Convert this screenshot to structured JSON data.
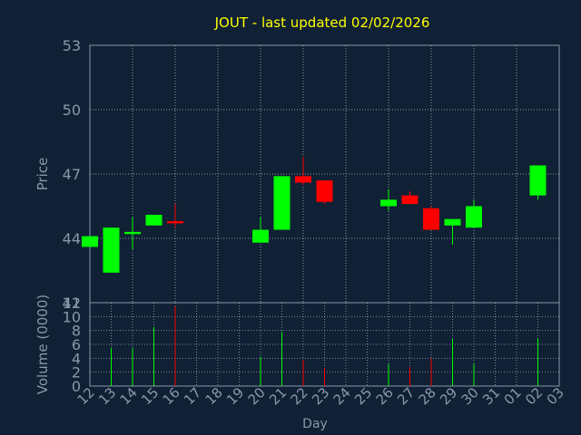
{
  "chart_data": [
    {
      "type": "candlestick",
      "title": "JOUT - last updated 02/02/2026",
      "ylabel": "Price",
      "ylim": [
        41,
        53
      ],
      "yticks": [
        41,
        44,
        47,
        50,
        53
      ],
      "grid": true,
      "colors": {
        "up": "#00ff00",
        "down": "#ff0000",
        "title": "#ffff00",
        "text": "#8899aa",
        "grid": "#ffffff",
        "background": "#102035"
      },
      "x": [
        "12",
        "13",
        "14",
        "15",
        "16",
        "17",
        "18",
        "19",
        "20",
        "21",
        "22",
        "23",
        "24",
        "25",
        "26",
        "27",
        "28",
        "29",
        "30",
        "31",
        "01",
        "02",
        "03"
      ],
      "candles": [
        {
          "day": "12",
          "open": 43.6,
          "close": 44.1,
          "high": 44.1,
          "low": 43.6
        },
        {
          "day": "13",
          "open": 42.4,
          "close": 44.5,
          "high": 44.5,
          "low": 42.4
        },
        {
          "day": "14",
          "open": 44.2,
          "close": 44.3,
          "high": 45.0,
          "low": 43.5
        },
        {
          "day": "15",
          "open": 44.6,
          "close": 45.1,
          "high": 45.1,
          "low": 44.6
        },
        {
          "day": "16",
          "open": 44.8,
          "close": 44.7,
          "high": 45.6,
          "low": 44.5
        },
        {
          "day": "20",
          "open": 43.8,
          "close": 44.4,
          "high": 45.0,
          "low": 43.8
        },
        {
          "day": "21",
          "open": 44.4,
          "close": 46.9,
          "high": 46.9,
          "low": 44.4
        },
        {
          "day": "22",
          "open": 46.9,
          "close": 46.6,
          "high": 47.8,
          "low": 46.5
        },
        {
          "day": "23",
          "open": 46.7,
          "close": 45.7,
          "high": 46.7,
          "low": 45.6
        },
        {
          "day": "26",
          "open": 45.5,
          "close": 45.8,
          "high": 46.3,
          "low": 45.3
        },
        {
          "day": "27",
          "open": 46.0,
          "close": 45.6,
          "high": 46.2,
          "low": 45.6
        },
        {
          "day": "28",
          "open": 45.4,
          "close": 44.4,
          "high": 45.5,
          "low": 44.4
        },
        {
          "day": "29",
          "open": 44.6,
          "close": 44.9,
          "high": 44.9,
          "low": 43.7
        },
        {
          "day": "30",
          "open": 44.5,
          "close": 45.5,
          "high": 45.8,
          "low": 44.5
        },
        {
          "day": "02",
          "open": 46.0,
          "close": 47.4,
          "high": 47.4,
          "low": 45.8
        }
      ]
    },
    {
      "type": "bar",
      "ylabel": "Volume (0000)",
      "xlabel": "Day",
      "ylim": [
        0,
        12
      ],
      "yticks": [
        0,
        2,
        4,
        6,
        8,
        10,
        12
      ],
      "grid": true,
      "categories": [
        "12",
        "13",
        "14",
        "15",
        "16",
        "17",
        "18",
        "19",
        "20",
        "21",
        "22",
        "23",
        "24",
        "25",
        "26",
        "27",
        "28",
        "29",
        "30",
        "31",
        "01",
        "02",
        "03"
      ],
      "values": [
        {
          "day": "13",
          "value": 5.5,
          "color": "#00ff00"
        },
        {
          "day": "14",
          "value": 5.5,
          "color": "#00ff00"
        },
        {
          "day": "15",
          "value": 8.5,
          "color": "#00ff00"
        },
        {
          "day": "16",
          "value": 11.5,
          "color": "#ff0000"
        },
        {
          "day": "20",
          "value": 4.2,
          "color": "#00ff00"
        },
        {
          "day": "21",
          "value": 7.8,
          "color": "#00ff00"
        },
        {
          "day": "22",
          "value": 3.8,
          "color": "#ff0000"
        },
        {
          "day": "23",
          "value": 2.6,
          "color": "#ff0000"
        },
        {
          "day": "26",
          "value": 3.2,
          "color": "#00ff00"
        },
        {
          "day": "27",
          "value": 2.7,
          "color": "#ff0000"
        },
        {
          "day": "28",
          "value": 4.0,
          "color": "#ff0000"
        },
        {
          "day": "29",
          "value": 6.8,
          "color": "#00ff00"
        },
        {
          "day": "30",
          "value": 3.2,
          "color": "#00ff00"
        },
        {
          "day": "02",
          "value": 6.9,
          "color": "#00ff00"
        }
      ]
    }
  ]
}
